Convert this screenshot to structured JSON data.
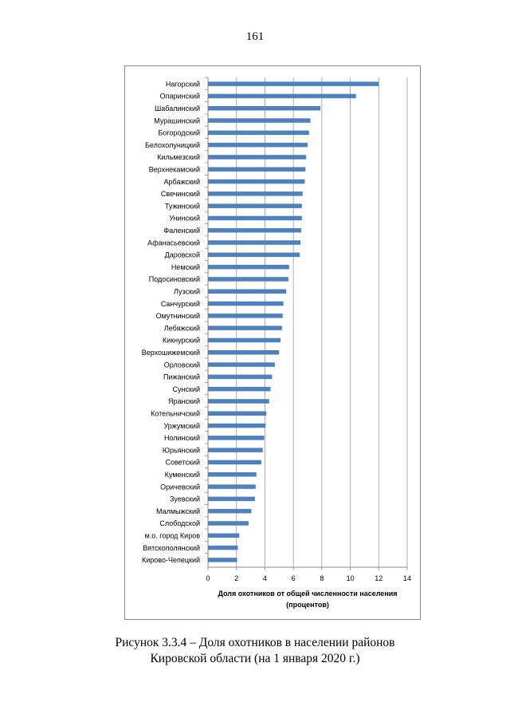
{
  "page": {
    "number": "161"
  },
  "caption": {
    "line1": "Рисунок 3.3.4 – Доля охотников в населении районов",
    "line2": "Кировской области (на 1 января 2020 г.)"
  },
  "chart_data": {
    "type": "bar",
    "orientation": "horizontal",
    "categories": [
      "Нагорский",
      "Опаринский",
      "Шабалинский",
      "Мурашинский",
      "Богородский",
      "Белохолуницкий",
      "Кильмезский",
      "Верхнекамский",
      "Арбажский",
      "Свечинский",
      "Тужинский",
      "Унинский",
      "Фаленский",
      "Афанасьевский",
      "Даровской",
      "Немский",
      "Подосиновский",
      "Лузский",
      "Санчурский",
      "Омутнинский",
      "Лебяжский",
      "Кикнурский",
      "Верхошижемский",
      "Орловский",
      "Пижанский",
      "Сунский",
      "Яранский",
      "Котельничский",
      "Уржумский",
      "Нолинский",
      "Юрьянский",
      "Советский",
      "Куменский",
      "Оричевский",
      "Зуевский",
      "Малмыжский",
      "Слободской",
      "м.о. город Киров",
      "Вятскополянский",
      "Кирово-Чепецкий"
    ],
    "values": [
      12.0,
      10.4,
      7.9,
      7.2,
      7.1,
      7.0,
      6.9,
      6.85,
      6.8,
      6.65,
      6.6,
      6.6,
      6.55,
      6.5,
      6.45,
      5.7,
      5.65,
      5.5,
      5.3,
      5.25,
      5.2,
      5.1,
      5.0,
      4.7,
      4.5,
      4.4,
      4.3,
      4.1,
      4.05,
      3.95,
      3.85,
      3.75,
      3.4,
      3.35,
      3.3,
      3.05,
      2.85,
      2.2,
      2.1,
      2.05
    ],
    "xlim": [
      0,
      14
    ],
    "xticks": [
      "0",
      "2",
      "4",
      "6",
      "8",
      "10",
      "12",
      "14"
    ],
    "xlabel_line1": "Доля охотников от общей численности населения",
    "xlabel_line2": "(процентов)",
    "grid": true,
    "bar_color": "#4f81bd"
  }
}
